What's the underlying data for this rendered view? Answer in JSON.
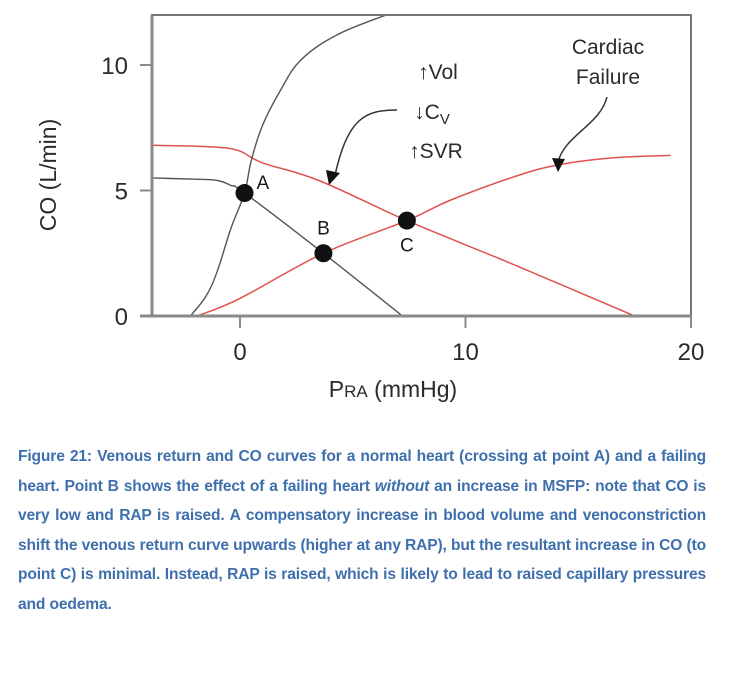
{
  "chart_data": {
    "type": "line",
    "title": "",
    "xlabel": "PRA (mmHg)",
    "xlabel_main": "P",
    "xlabel_sub": "RA",
    "xlabel_unit": " (mmHg)",
    "ylabel": "CO (L/min)",
    "xlim": [
      -3.9,
      20
    ],
    "ylim": [
      0,
      12.0
    ],
    "x_ticks": [
      0,
      10,
      20
    ],
    "x_tick_labels": [
      "0",
      "10",
      "20"
    ],
    "y_ticks": [
      0,
      5,
      10
    ],
    "y_tick_labels": [
      "0",
      "5",
      "10"
    ],
    "grid": false,
    "legend": "none",
    "series": [
      {
        "name": "Normal venous return curve",
        "color": "#555555",
        "points": [
          [
            -3.9,
            5.5
          ],
          [
            -2.0,
            5.45
          ],
          [
            -1.0,
            5.4
          ],
          [
            -0.4,
            5.2
          ],
          [
            0.2,
            4.9
          ],
          [
            3.7,
            2.5
          ],
          [
            7.2,
            0
          ]
        ]
      },
      {
        "name": "Shifted venous return curve (increased Vol, decreased Cv, increased SVR)",
        "color": "#e0524f",
        "points": [
          [
            -3.9,
            6.8
          ],
          [
            -1.5,
            6.75
          ],
          [
            -0.1,
            6.6
          ],
          [
            1.0,
            6.1
          ],
          [
            3.5,
            5.4
          ],
          [
            7.4,
            3.8
          ],
          [
            12.0,
            2.1
          ],
          [
            17.5,
            0
          ]
        ]
      },
      {
        "name": "Normal cardiac function curve",
        "color": "#555555",
        "points": [
          [
            -2.2,
            0
          ],
          [
            -1.5,
            0.8
          ],
          [
            -1.0,
            1.8
          ],
          [
            -0.4,
            3.5
          ],
          [
            0.2,
            4.9
          ],
          [
            0.5,
            6.2
          ],
          [
            1.0,
            7.6
          ],
          [
            1.8,
            9.0
          ],
          [
            2.7,
            10.2
          ],
          [
            4.3,
            11.2
          ],
          [
            6.5,
            12.0
          ]
        ]
      },
      {
        "name": "Cardiac failure function curve",
        "color": "#e0524f",
        "points": [
          [
            -1.9,
            0
          ],
          [
            0.0,
            0.7
          ],
          [
            3.7,
            2.5
          ],
          [
            7.4,
            3.8
          ],
          [
            9.3,
            4.6
          ],
          [
            12.0,
            5.5
          ],
          [
            14.0,
            6.0
          ],
          [
            16.5,
            6.3
          ],
          [
            19.1,
            6.4
          ]
        ]
      }
    ],
    "points": [
      {
        "label": "A",
        "x": 0.2,
        "y": 4.9
      },
      {
        "label": "B",
        "x": 3.7,
        "y": 2.5
      },
      {
        "label": "C",
        "x": 7.4,
        "y": 3.8
      }
    ],
    "annotations": [
      {
        "text": "↑Vol",
        "target": "Shifted venous return curve"
      },
      {
        "text": "↓Cv",
        "target": "Shifted venous return curve"
      },
      {
        "text": "↑SVR",
        "target": "Shifted venous return curve"
      },
      {
        "text": "Cardiac",
        "target": "Cardiac failure function curve"
      },
      {
        "text": "Failure",
        "target": "Cardiac failure function curve"
      }
    ]
  },
  "caption": {
    "part1": "Figure 21: Venous return and CO curves for a normal heart (crossing at point A) and a failing heart. Point B shows the effect of a failing heart ",
    "italic": "without",
    "part2": " an increase in MSFP: note that CO is very low and RAP is raised. A compensatory increase in blood volume and venoconstriction shift the venous return curve upwards (higher at any RAP), but the resultant increase in CO (to point C) is minimal. Instead, RAP is raised, which is likely to lead to raised capillary pressures and oedema.",
    "color": "#3f6fac"
  }
}
